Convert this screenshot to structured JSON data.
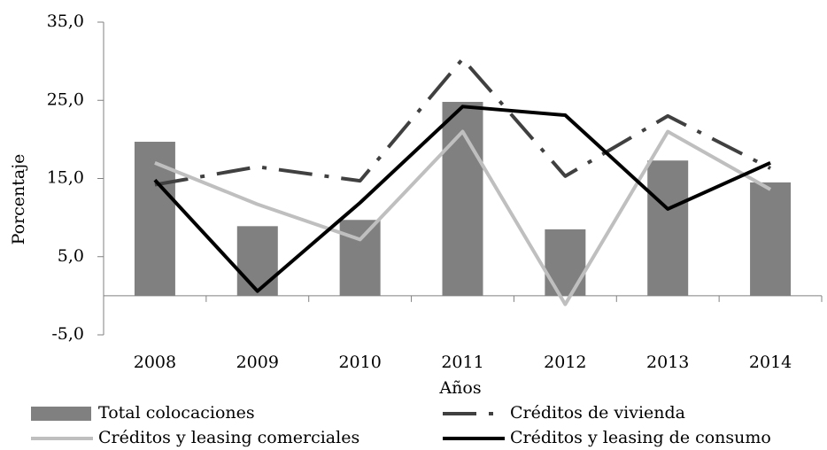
{
  "chart_data": {
    "type": "bar",
    "x_label": "Años",
    "y_label": "Porcentaje",
    "categories": [
      "2008",
      "2009",
      "2010",
      "2011",
      "2012",
      "2013",
      "2014"
    ],
    "ylim": [
      -5,
      35
    ],
    "yticks": [
      {
        "value": -5,
        "label": "-5,0"
      },
      {
        "value": 5,
        "label": "5,0"
      },
      {
        "value": 15,
        "label": "15,0"
      },
      {
        "value": 25,
        "label": "25,0"
      },
      {
        "value": 35,
        "label": "35,0"
      }
    ],
    "grid": false,
    "series": [
      {
        "name": "Total colocaciones",
        "type": "bar",
        "color": "#808080",
        "values": [
          19.7,
          8.9,
          9.7,
          24.8,
          8.5,
          17.3,
          14.5
        ]
      },
      {
        "name": "Créditos de vivienda",
        "type": "line",
        "style": "dashdot",
        "color": "#404040",
        "values": [
          14.2,
          16.5,
          14.7,
          30.3,
          15.3,
          23.0,
          16.3
        ]
      },
      {
        "name": "Créditos y leasing comerciales",
        "type": "line",
        "color": "#bfbfbf",
        "values": [
          17.0,
          11.7,
          7.2,
          21.0,
          -1.1,
          21.0,
          13.6
        ]
      },
      {
        "name": "Créditos y leasing de consumo",
        "type": "line",
        "color": "#000000",
        "values": [
          14.8,
          0.6,
          11.9,
          24.2,
          23.1,
          11.1,
          17.0
        ]
      }
    ]
  }
}
